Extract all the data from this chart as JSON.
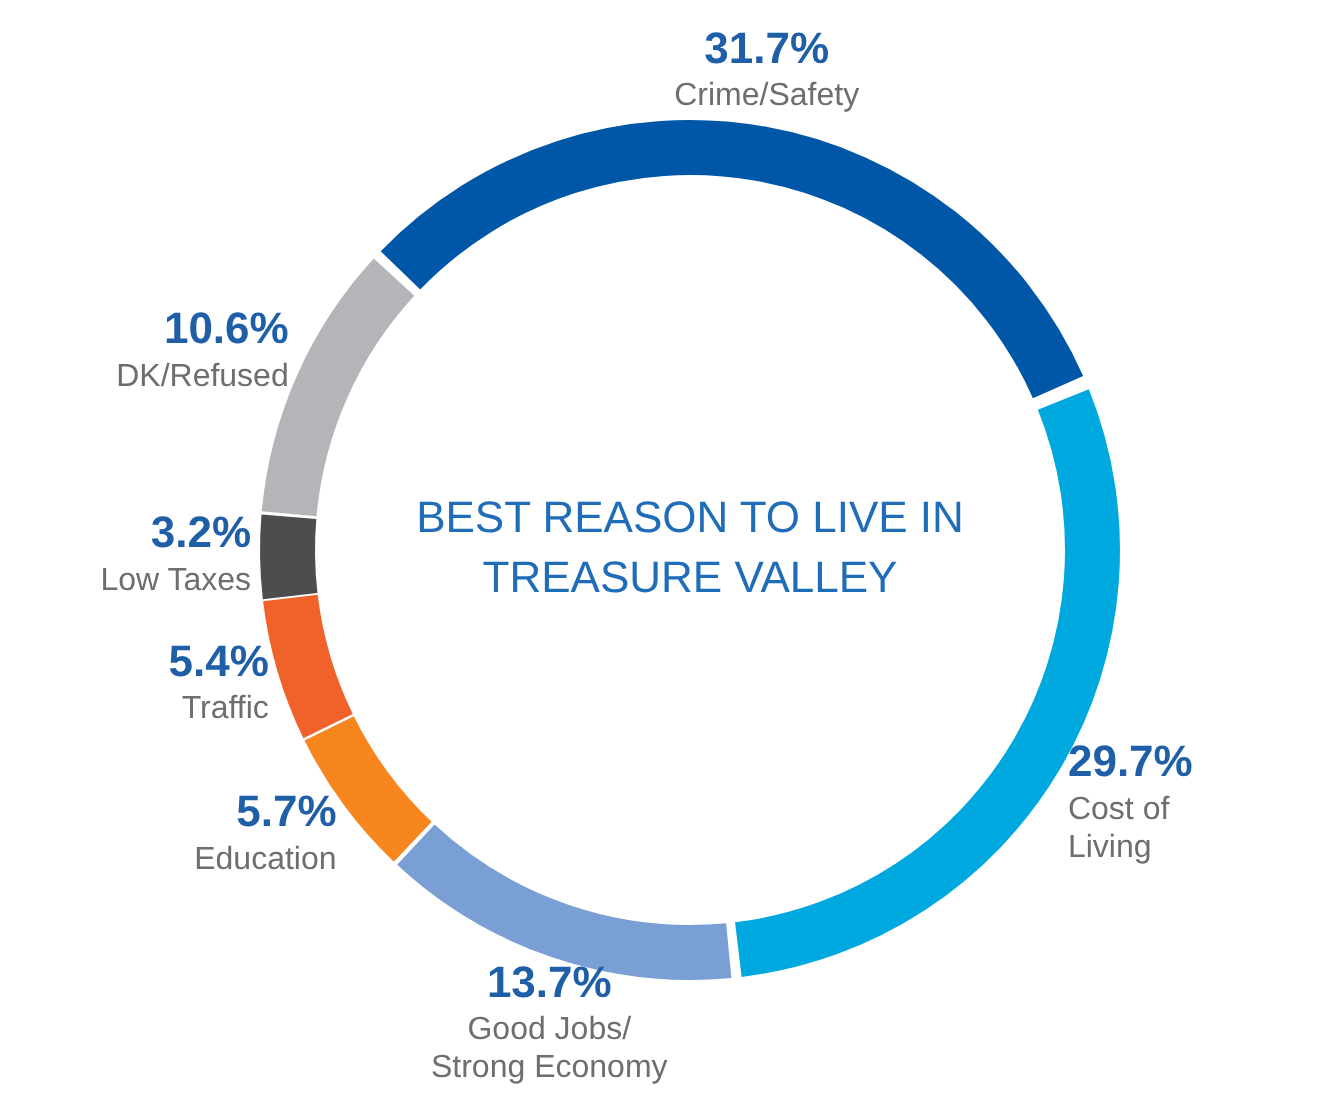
{
  "chart_data": {
    "type": "donut",
    "title": "BEST REASON TO LIVE IN TREASURE VALLEY",
    "categories": [
      "Crime/Safety",
      "Cost of\nLiving",
      "Good Jobs/\nStrong Economy",
      "Education",
      "Traffic",
      "Low Taxes",
      "DK/Refused"
    ],
    "values": [
      31.7,
      29.7,
      13.7,
      5.7,
      5.4,
      3.2,
      10.6
    ],
    "value_labels": [
      "31.7%",
      "29.7%",
      "13.7%",
      "5.7%",
      "5.4%",
      "3.2%",
      "10.6%"
    ],
    "colors": [
      "#0057a8",
      "#00a8e0",
      "#7a9fd4",
      "#f7861f",
      "#f0622a",
      "#4d4d4f",
      "#b3b5b8"
    ],
    "legend": false
  }
}
